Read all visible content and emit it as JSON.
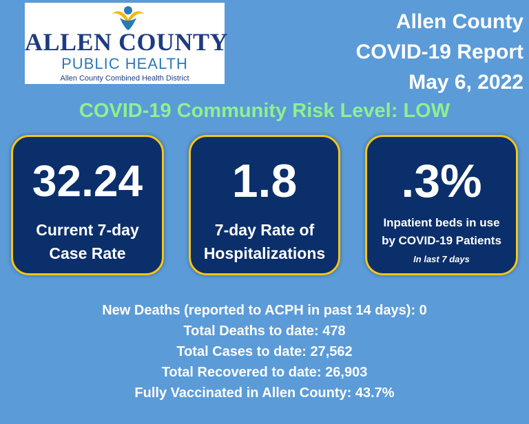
{
  "logo": {
    "name": "ALLEN COUNTY",
    "subtitle": "PUBLIC HEALTH",
    "tagline": "Allen County Combined Health District"
  },
  "report": {
    "line1": "Allen County",
    "line2": "COVID-19 Report",
    "date": "May 6, 2022"
  },
  "risk_level": "COVID-19 Community Risk Level: LOW",
  "cards": [
    {
      "value": "32.24",
      "label_line1": "Current 7-day",
      "label_line2": "Case Rate"
    },
    {
      "value": "1.8",
      "label_line1": "7-day Rate of",
      "label_line2": "Hospitalizations"
    },
    {
      "value": ".3%",
      "label_line1": "Inpatient beds in use",
      "label_line2": "by COVID-19 Patients",
      "note": "In last  7 days"
    }
  ],
  "stats": [
    "New Deaths (reported to ACPH in past 14 days): 0",
    "Total Deaths to date: 478",
    "Total Cases to date: 27,562",
    "Total Recovered to date: 26,903",
    "Fully Vaccinated in Allen County: 43.7%"
  ],
  "colors": {
    "background": "#5b9bd8",
    "card": "#0b2f6a",
    "card_border": "#f5c518",
    "risk_text": "#8ff08f",
    "logo_blue": "#1e3b82"
  }
}
